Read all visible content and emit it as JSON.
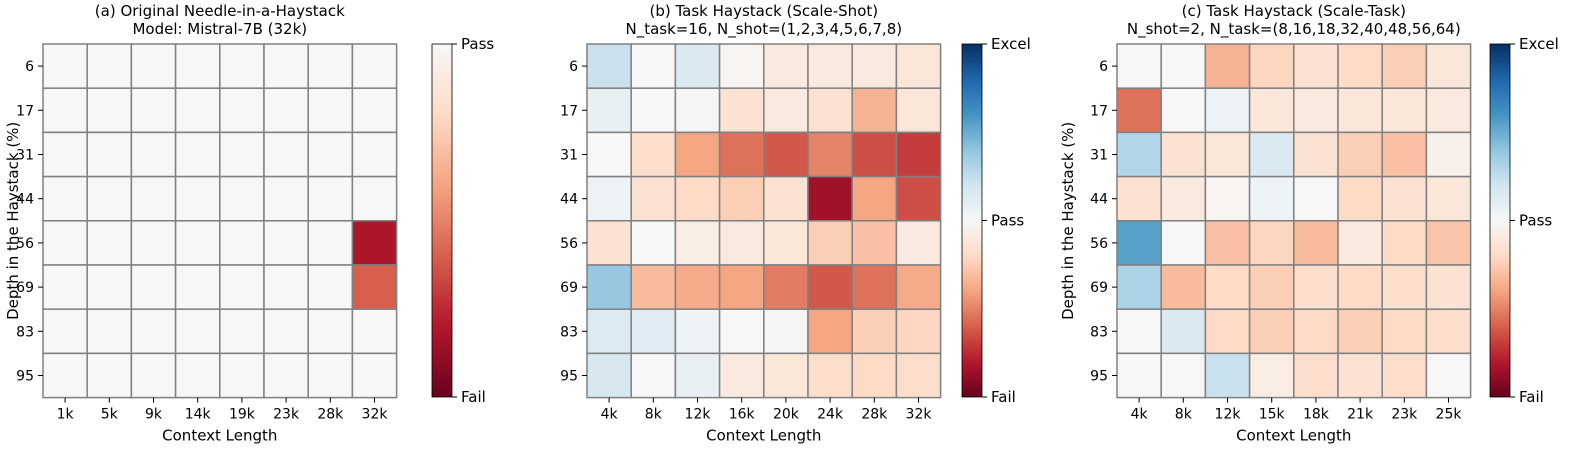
{
  "figure": {
    "colorbar_colors": [
      "#67001f",
      "#b2182b",
      "#d6604d",
      "#f4a582",
      "#fddbc7",
      "#f7f7f7",
      "#d1e5f0",
      "#92c5de",
      "#4393c3",
      "#2166ac",
      "#053061"
    ]
  },
  "chart_data": [
    {
      "type": "heatmap",
      "title": "(a) Original Needle-in-a-Haystack",
      "subtitle": "Model: Mistral-7B (32k)",
      "xlabel": "Context Length",
      "ylabel": "Depth in the Haystack (%)",
      "x": [
        "1k",
        "5k",
        "9k",
        "14k",
        "19k",
        "23k",
        "28k",
        "32k"
      ],
      "y": [
        "6",
        "17",
        "31",
        "44",
        "56",
        "69",
        "83",
        "95"
      ],
      "colorbar": {
        "labels": [
          "Fail",
          "Pass"
        ],
        "range": [
          -1,
          0
        ]
      },
      "values": [
        [
          0,
          0,
          0,
          0,
          0,
          0,
          0,
          0
        ],
        [
          0,
          0,
          0,
          0,
          0,
          0,
          0,
          0
        ],
        [
          0,
          0,
          0,
          0,
          0,
          0,
          0,
          0
        ],
        [
          0,
          0,
          0,
          0,
          0,
          0,
          0,
          0
        ],
        [
          0,
          0,
          0,
          0,
          0,
          0,
          0,
          -0.82
        ],
        [
          0,
          0,
          0,
          0,
          0,
          0,
          0,
          -0.6
        ],
        [
          0,
          0,
          0,
          0,
          0,
          0,
          0,
          0
        ],
        [
          0,
          0,
          0,
          0,
          0,
          0,
          0,
          0
        ]
      ]
    },
    {
      "type": "heatmap",
      "title": "(b) Task Haystack (Scale-Shot)",
      "subtitle": "N_task=16, N_shot=(1,2,3,4,5,6,7,8)",
      "xlabel": "Context Length",
      "ylabel": "",
      "x": [
        "4k",
        "8k",
        "12k",
        "16k",
        "20k",
        "24k",
        "28k",
        "32k"
      ],
      "y": [
        "6",
        "17",
        "31",
        "44",
        "56",
        "69",
        "83",
        "95"
      ],
      "colorbar": {
        "labels": [
          "Fail",
          "Pass",
          "Excel"
        ],
        "range": [
          -1,
          1
        ]
      },
      "values": [
        [
          0.22,
          0,
          0.15,
          -0.02,
          -0.1,
          -0.1,
          -0.1,
          -0.12
        ],
        [
          0.08,
          0,
          0.02,
          -0.15,
          -0.1,
          -0.15,
          -0.35,
          -0.12
        ],
        [
          0,
          -0.18,
          -0.4,
          -0.55,
          -0.62,
          -0.5,
          -0.65,
          -0.7
        ],
        [
          0.06,
          -0.15,
          -0.2,
          -0.25,
          -0.15,
          -0.85,
          -0.4,
          -0.65
        ],
        [
          -0.15,
          0,
          -0.08,
          -0.1,
          -0.12,
          -0.25,
          -0.3,
          -0.1
        ],
        [
          0.38,
          -0.32,
          -0.38,
          -0.4,
          -0.52,
          -0.62,
          -0.55,
          -0.38
        ],
        [
          0.14,
          0.12,
          0.05,
          0,
          0.02,
          -0.4,
          -0.25,
          -0.22
        ],
        [
          0.17,
          0,
          0.08,
          -0.1,
          -0.12,
          -0.18,
          -0.2,
          -0.18
        ]
      ]
    },
    {
      "type": "heatmap",
      "title": "(c) Task Haystack (Scale-Task)",
      "subtitle": "N_shot=2, N_task=(8,16,18,32,40,48,56,64)",
      "xlabel": "Context Length",
      "ylabel": "Depth in the Haystack (%)",
      "x": [
        "4k",
        "8k",
        "12k",
        "15k",
        "18k",
        "21k",
        "23k",
        "25k"
      ],
      "y": [
        "6",
        "17",
        "31",
        "44",
        "56",
        "69",
        "83",
        "95"
      ],
      "colorbar": {
        "labels": [
          "Fail",
          "Pass",
          "Excel"
        ],
        "range": [
          -1,
          1
        ]
      },
      "values": [
        [
          0,
          0,
          -0.35,
          -0.22,
          -0.15,
          -0.2,
          -0.25,
          -0.12
        ],
        [
          -0.55,
          0,
          0.06,
          -0.12,
          -0.1,
          -0.12,
          -0.12,
          -0.1
        ],
        [
          0.3,
          -0.15,
          -0.12,
          0.15,
          -0.15,
          -0.25,
          -0.3,
          -0.05
        ],
        [
          -0.15,
          -0.1,
          -0.02,
          0.05,
          0,
          -0.2,
          -0.15,
          -0.12
        ],
        [
          0.55,
          0,
          -0.3,
          -0.22,
          -0.32,
          -0.1,
          -0.2,
          -0.28
        ],
        [
          0.32,
          -0.32,
          -0.2,
          -0.25,
          -0.18,
          -0.2,
          -0.18,
          -0.15
        ],
        [
          0,
          0.15,
          -0.2,
          -0.25,
          -0.2,
          -0.25,
          -0.2,
          -0.18
        ],
        [
          0,
          0,
          0.22,
          -0.08,
          -0.18,
          -0.15,
          -0.18,
          0
        ]
      ]
    }
  ]
}
